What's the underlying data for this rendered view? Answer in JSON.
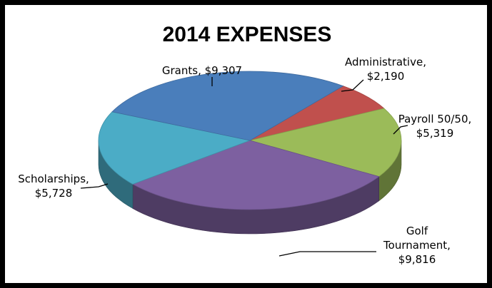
{
  "chart_data": {
    "type": "pie",
    "style": "3d",
    "title": "2014 EXPENSES",
    "slices": [
      {
        "name": "Grants",
        "value": 9307,
        "display": "$9,307",
        "color": "#4a7ebb",
        "label_lines": [
          "Grants,  $9,307"
        ]
      },
      {
        "name": "Administrative",
        "value": 2190,
        "display": "$2,190",
        "color": "#c0504d",
        "label_lines": [
          "Administrative,",
          "$2,190"
        ]
      },
      {
        "name": "Payroll 50/50",
        "value": 5319,
        "display": "$5,319",
        "color": "#9bbb59",
        "label_lines": [
          "Payroll 50/50,",
          "$5,319"
        ]
      },
      {
        "name": "Golf Tournament",
        "value": 9816,
        "display": "$9,816",
        "color": "#7d60a0",
        "label_lines": [
          "Golf",
          "Tournament,",
          "$9,816"
        ]
      },
      {
        "name": "Scholarships",
        "value": 5728,
        "display": "$5,728",
        "color": "#4bacc6",
        "label_lines": [
          "Scholarships,",
          "$5,728"
        ]
      }
    ],
    "legend": "none",
    "data_labels": "outside-with-leader-lines"
  }
}
